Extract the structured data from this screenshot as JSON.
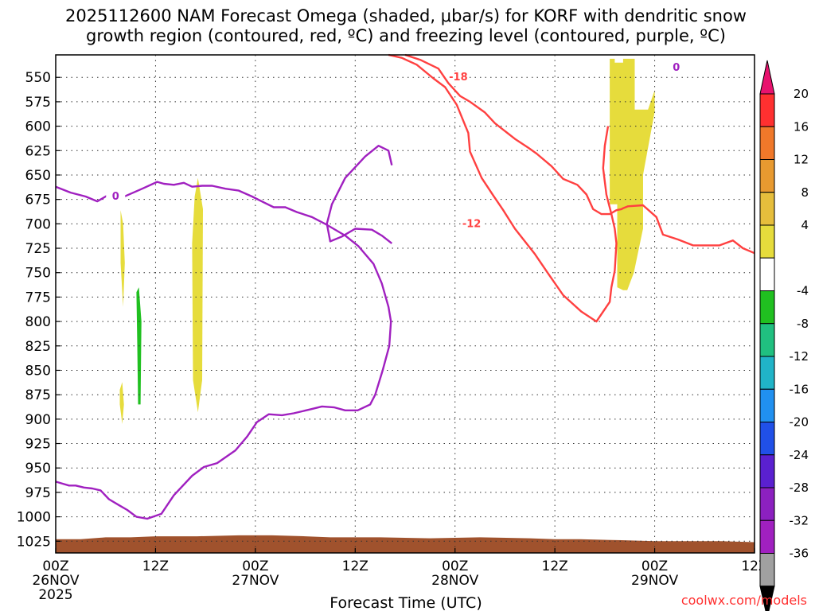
{
  "chart_data": {
    "type": "time-height cross section",
    "title_line1": "2025112600 NAM Forecast Omega (shaded, μbar/s) for KORF with dendritic snow",
    "title_line2": "growth region (contoured, red, ºC) and freezing level (contoured, purple, ºC)",
    "xlabel": "Forecast Time (UTC)",
    "credit": "coolwx.com/models",
    "x_unit": "forecast hours",
    "xlim": [
      0,
      84
    ],
    "ylim_hpa": [
      527,
      1037
    ],
    "y_ticks": [
      "550",
      "575",
      "600",
      "625",
      "650",
      "675",
      "700",
      "725",
      "750",
      "775",
      "800",
      "825",
      "850",
      "875",
      "900",
      "925",
      "950",
      "975",
      "1000",
      "1025"
    ],
    "x_ticks": [
      {
        "hour": 0,
        "line1": "00Z",
        "line2": "26NOV",
        "line3": "2025"
      },
      {
        "hour": 12,
        "line1": "12Z",
        "line2": "",
        "line3": ""
      },
      {
        "hour": 24,
        "line1": "00Z",
        "line2": "27NOV",
        "line3": ""
      },
      {
        "hour": 36,
        "line1": "12Z",
        "line2": "",
        "line3": ""
      },
      {
        "hour": 48,
        "line1": "00Z",
        "line2": "28NOV",
        "line3": ""
      },
      {
        "hour": 60,
        "line1": "12Z",
        "line2": "",
        "line3": ""
      },
      {
        "hour": 72,
        "line1": "00Z",
        "line2": "29NOV",
        "line3": ""
      },
      {
        "hour": 84,
        "line1": "12Z",
        "line2": "",
        "line3": ""
      }
    ],
    "colorbar": {
      "tick_labels": [
        "20",
        "16",
        "12",
        "8",
        "4",
        "-4",
        "-8",
        "-12",
        "-16",
        "-20",
        "-24",
        "-28",
        "-32",
        "-36"
      ],
      "colors": [
        "#e8126e",
        "#ff3030",
        "#f0782a",
        "#e89a30",
        "#e6be3c",
        "#e6dc3c",
        "#ffffff",
        "#20c020",
        "#20c080",
        "#20b4c8",
        "#2090f0",
        "#2050e8",
        "#5a20d0",
        "#8c20c0",
        "#a020c0",
        "#a0a0a0",
        "#000000"
      ]
    },
    "surface_pressure": {
      "color": "#a0522d",
      "x": [
        0,
        3,
        6,
        9,
        12,
        17,
        22,
        26,
        30,
        33,
        39,
        45,
        51,
        57,
        60,
        63,
        68,
        72,
        76,
        80,
        84
      ],
      "p": [
        1023,
        1023,
        1021,
        1021,
        1020,
        1020,
        1019,
        1019,
        1020,
        1021,
        1021,
        1022,
        1021,
        1022,
        1023,
        1023,
        1024,
        1025,
        1025,
        1025,
        1026
      ]
    },
    "omega_shaded": [
      {
        "color": "#e6dc3c",
        "x": [
          7.8,
          8.1,
          8.3,
          8.1,
          7.8
        ],
        "p": [
          686,
          700,
          740,
          785,
          740
        ]
      },
      {
        "color": "#e6dc3c",
        "x": [
          7.7,
          8.0,
          8.2,
          8.0,
          7.7
        ],
        "p": [
          870,
          862,
          885,
          905,
          885
        ]
      },
      {
        "color": "#20c020",
        "x": [
          9.7,
          10.0,
          10.3,
          10.2,
          9.9,
          9.8
        ],
        "p": [
          770,
          765,
          800,
          885,
          885,
          820
        ]
      },
      {
        "color": "#e6dc3c",
        "x": [
          16.7,
          17.1,
          17.7,
          17.6,
          17.1,
          16.5,
          16.4
        ],
        "p": [
          672,
          653,
          685,
          860,
          893,
          860,
          720
        ]
      },
      {
        "color": "#e6dc3c",
        "x": [
          66.6,
          67.2,
          67.2,
          68.2,
          68.2,
          69.6,
          69.6,
          71.2,
          72.0,
          72.0,
          70.6,
          70.6,
          68.2,
          67.5,
          67.5,
          66.6
        ],
        "p": [
          531,
          531,
          535,
          535,
          531,
          531,
          583,
          583,
          563,
          585,
          650,
          705,
          768,
          765,
          680,
          680
        ]
      },
      {
        "color": "#e6dc3c",
        "x": [
          68.0,
          69.0,
          69.6,
          70.6,
          70.6,
          69.5,
          68.7,
          68.2
        ],
        "p": [
          645,
          640,
          645,
          643,
          705,
          750,
          768,
          768
        ]
      }
    ],
    "isotherms_red": [
      {
        "color": "#ff4040",
        "label": "-18",
        "label_x": 48.4,
        "label_p": 550,
        "x": [
          42.0,
          43.8,
          46.0,
          47.2,
          48.6,
          49.8,
          51.6,
          52.8,
          55.2,
          56.8,
          57.8,
          59.6,
          61.0,
          62.7,
          63.8,
          64.6,
          65.6,
          66.6,
          67.4,
          68.0,
          68.2,
          68.8,
          70.6,
          72.2,
          73.0,
          74.8,
          76.6,
          79.8,
          81.4,
          82.6,
          84.0
        ],
        "p": [
          527,
          532,
          541,
          556,
          569,
          575,
          586,
          597,
          613,
          622,
          628,
          641,
          654,
          660,
          670,
          685,
          690,
          690,
          686,
          685,
          684,
          682,
          681,
          693,
          711,
          716,
          722,
          722,
          717,
          725,
          730
        ]
      },
      {
        "color": "#ff4040",
        "label": "-12",
        "label_x": 50.0,
        "label_p": 700,
        "x": [
          40.0,
          41.6,
          43.4,
          45.4,
          46.8,
          48.2,
          49.6,
          49.8,
          51.2,
          52.6,
          53.8,
          55.2,
          57.6,
          59.2,
          61.0,
          63.2,
          65.0,
          66.6,
          66.8,
          67.2,
          67.4,
          67.2,
          66.8,
          66.2,
          65.8,
          66.0,
          66.4
        ],
        "p": [
          527,
          530,
          537,
          551,
          560,
          578,
          607,
          626,
          653,
          671,
          686,
          705,
          731,
          751,
          773,
          790,
          800,
          780,
          765,
          748,
          720,
          705,
          690,
          670,
          643,
          620,
          600
        ]
      }
    ],
    "isotherms_purple": [
      {
        "color": "#a020c0",
        "label": "0",
        "label_x": 7.2,
        "label_p": 672,
        "x": [
          0,
          1.8,
          3.6,
          5.0,
          6.4,
          8.0,
          10.4,
          12.2,
          13.0,
          14.2,
          15.4,
          16.4,
          17.6,
          18.8,
          20.4,
          22.0,
          23.6,
          25.0,
          26.2,
          27.6,
          29.0,
          30.8,
          32.6,
          34.8,
          36.4,
          38.2,
          39.2,
          40.0,
          40.3,
          40.1,
          39.3,
          38.4,
          37.8,
          36.3,
          34.8,
          33.5,
          32.0,
          30.6,
          28.6,
          27.2,
          25.6,
          24.2,
          23.0,
          21.6,
          19.4,
          17.8,
          16.4,
          14.2,
          12.7,
          11.0,
          9.7,
          8.6,
          7.6,
          6.4,
          5.4,
          4.4,
          3.4,
          2.4,
          1.6,
          0.8,
          0
        ],
        "p": [
          662,
          668,
          672,
          677,
          670,
          673,
          664,
          657,
          659,
          660,
          658,
          662,
          661,
          661,
          664,
          666,
          672,
          678,
          683,
          683,
          688,
          693,
          701,
          712,
          723,
          741,
          761,
          785,
          800,
          825,
          850,
          875,
          885,
          891,
          891,
          888,
          887,
          890,
          894,
          896,
          895,
          903,
          918,
          932,
          945,
          949,
          958,
          978,
          997,
          1002,
          1000,
          993,
          988,
          982,
          973,
          971,
          970,
          968,
          968,
          966,
          964
        ]
      },
      {
        "color": "#a020c0",
        "label": "0",
        "label_x": 74.6,
        "label_p": 540,
        "x": [
          40.4,
          39.2,
          38.0,
          36.0,
          34.4,
          33.0,
          32.6,
          33.2,
          34.8,
          37.2,
          38.8,
          40.0,
          40.4
        ],
        "p": [
          720,
          712,
          706,
          705,
          713,
          718,
          700,
          680,
          653,
          631,
          620,
          625,
          640
        ]
      }
    ]
  }
}
